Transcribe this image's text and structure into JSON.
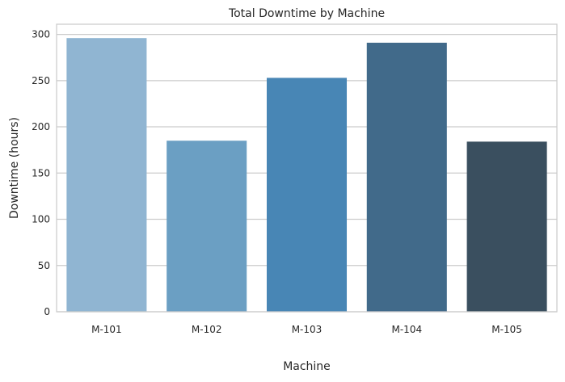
{
  "chart_data": {
    "type": "bar",
    "title": "Total Downtime by Machine",
    "xlabel": "Machine",
    "ylabel": "Downtime (hours)",
    "categories": [
      "M-101",
      "M-102",
      "M-103",
      "M-104",
      "M-105"
    ],
    "values": [
      296,
      185,
      253,
      291,
      184
    ],
    "ylim": [
      0,
      311
    ],
    "yticks": [
      0,
      50,
      100,
      150,
      200,
      250,
      300
    ],
    "grid": "horizontal",
    "colors": [
      "#90b5d2",
      "#6b9fc3",
      "#4886b5",
      "#416a8a",
      "#3a4f5f"
    ],
    "grid_color": "#cccccc",
    "spine_color": "#cccccc",
    "plot_background": "#ffffff"
  }
}
